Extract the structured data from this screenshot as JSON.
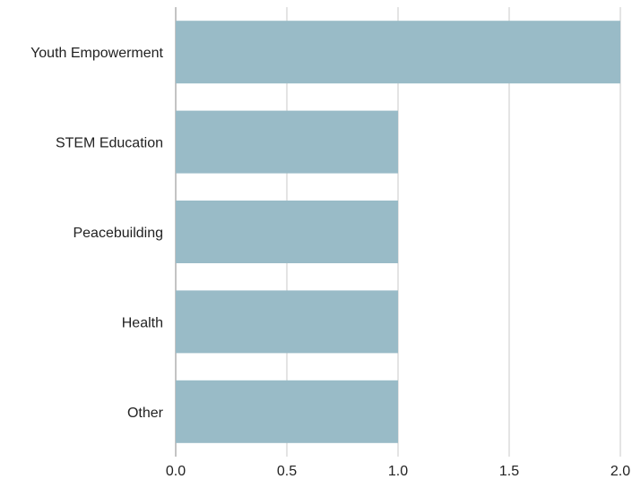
{
  "chart_data": {
    "type": "bar",
    "orientation": "horizontal",
    "categories": [
      "Youth Empowerment",
      "STEM Education",
      "Peacebuilding",
      "Health",
      "Other"
    ],
    "values": [
      2,
      1,
      1,
      1,
      1
    ],
    "xlim": [
      0,
      2
    ],
    "x_ticks": [
      "0.0",
      "0.5",
      "1.0",
      "1.5",
      "2.0"
    ],
    "title": "",
    "xlabel": "",
    "ylabel": "",
    "grid": "vertical",
    "bar_color": "#99bbc7"
  }
}
